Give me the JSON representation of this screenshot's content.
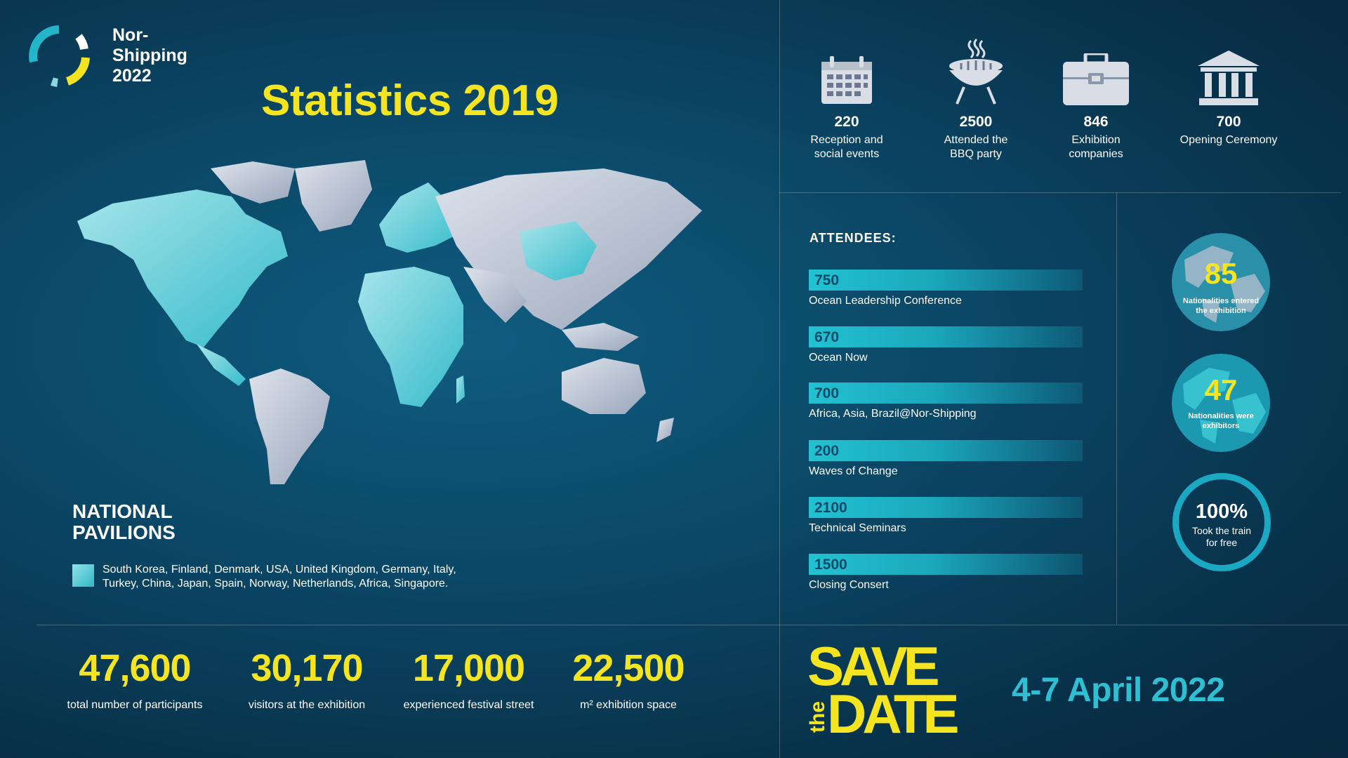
{
  "brand": {
    "name_lines": [
      "Nor-",
      "Shipping",
      "2022"
    ],
    "colors": {
      "yellow": "#f4e520",
      "teal": "#2fbfd2",
      "navy": "#0b4766"
    }
  },
  "title": "Statistics 2019",
  "pavilions": {
    "title_lines": [
      "NATIONAL",
      "PAVILIONS"
    ],
    "countries_line1": "South Korea, Finland, Denmark, USA, United Kingdom, Germany, Italy,",
    "countries_line2": "Turkey, China, Japan, Spain, Norway, Netherlands, Africa, Singapore."
  },
  "bottom_stats": [
    {
      "value": "47,600",
      "label": "total number of participants"
    },
    {
      "value": "30,170",
      "label": "visitors at the exhibition"
    },
    {
      "value": "17,000",
      "label": "experienced festival street"
    },
    {
      "value": "22,500",
      "label": "m² exhibition space"
    }
  ],
  "icon_stats": [
    {
      "icon": "calendar-icon",
      "value": "220",
      "label_lines": [
        "Reception and",
        "social events"
      ]
    },
    {
      "icon": "bbq-grill-icon",
      "value": "2500",
      "label_lines": [
        "Attended the",
        "BBQ party"
      ]
    },
    {
      "icon": "briefcase-icon",
      "value": "846",
      "label_lines": [
        "Exhibition",
        "companies"
      ]
    },
    {
      "icon": "bank-building-icon",
      "value": "700",
      "label_lines": [
        "Opening Ceremony"
      ]
    }
  ],
  "attendees": {
    "title": "ATTENDEES:",
    "items": [
      {
        "value": "750",
        "label": "Ocean Leadership Conference"
      },
      {
        "value": "670",
        "label": "Ocean Now"
      },
      {
        "value": "700",
        "label": "Africa, Asia, Brazil@Nor-Shipping"
      },
      {
        "value": "200",
        "label": "Waves of Change"
      },
      {
        "value": "2100",
        "label": "Technical Seminars"
      },
      {
        "value": "1500",
        "label": "Closing Consert"
      }
    ]
  },
  "globes": [
    {
      "value": "85",
      "label_lines": [
        "Nationalities entered",
        "the exhibition"
      ]
    },
    {
      "value": "47",
      "label_lines": [
        "Nationalities were",
        "exhibitors"
      ]
    }
  ],
  "train": {
    "value": "100%",
    "label_lines": [
      "Took the train",
      "for free"
    ]
  },
  "save_the_date": {
    "save": "SAVE",
    "the": "the",
    "date": "DATE",
    "dates": "4-7 April 2022"
  }
}
